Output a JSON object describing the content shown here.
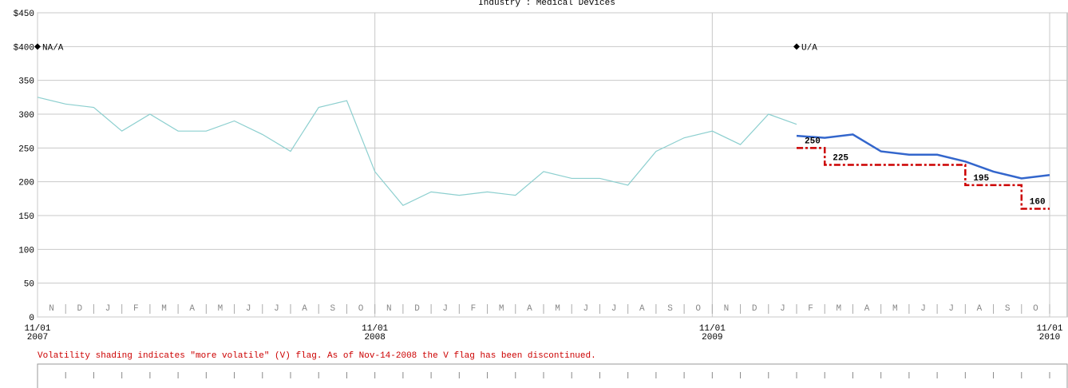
{
  "chart_data": {
    "type": "line",
    "title": "Industry : Medical Devices",
    "x": [
      "2007-11",
      "2007-12",
      "2008-01",
      "2008-02",
      "2008-03",
      "2008-04",
      "2008-05",
      "2008-06",
      "2008-07",
      "2008-08",
      "2008-09",
      "2008-10",
      "2008-11",
      "2008-12",
      "2009-01",
      "2009-02",
      "2009-03",
      "2009-04",
      "2009-05",
      "2009-06",
      "2009-07",
      "2009-08",
      "2009-09",
      "2009-10",
      "2009-11",
      "2009-12",
      "2010-01",
      "2010-02",
      "2010-03",
      "2010-04",
      "2010-05",
      "2010-06",
      "2010-07",
      "2010-08",
      "2010-09",
      "2010-10",
      "2010-11"
    ],
    "series": [
      {
        "color": "#8ccfcf",
        "values": [
          325,
          315,
          310,
          275,
          300,
          275,
          275,
          290,
          270,
          245,
          310,
          320,
          215,
          165,
          185,
          180,
          185,
          180,
          215,
          205,
          205,
          195,
          245,
          265,
          275,
          255,
          300,
          285,
          null,
          null,
          null,
          null,
          null,
          null,
          null,
          null,
          null
        ]
      },
      {
        "color": "#3366cc",
        "values": [
          null,
          null,
          null,
          null,
          null,
          null,
          null,
          null,
          null,
          null,
          null,
          null,
          null,
          null,
          null,
          null,
          null,
          null,
          null,
          null,
          null,
          null,
          null,
          null,
          null,
          null,
          null,
          268,
          265,
          270,
          245,
          240,
          240,
          230,
          215,
          205,
          210
        ]
      },
      {
        "color": "#cc0000",
        "step": true,
        "values": [
          null,
          null,
          null,
          null,
          null,
          null,
          null,
          null,
          null,
          null,
          null,
          null,
          null,
          null,
          null,
          null,
          null,
          null,
          null,
          null,
          null,
          null,
          null,
          null,
          null,
          null,
          null,
          250,
          225,
          225,
          225,
          225,
          225,
          195,
          195,
          160,
          160
        ]
      }
    ],
    "annotations": [
      {
        "text": "NA/A",
        "x": "2007-11",
        "y": 400
      },
      {
        "text": "U/A",
        "x": "2010-02",
        "y": 400
      }
    ],
    "xlim": [
      "2007-11",
      "2010-11"
    ],
    "xticks": [
      {
        "value": "2007-11",
        "label": "11/01",
        "year": "2007"
      },
      {
        "value": "2008-11",
        "label": "11/01",
        "year": "2008"
      },
      {
        "value": "2009-11",
        "label": "11/01",
        "year": "2009"
      },
      {
        "value": "2010-11",
        "label": "11/01",
        "year": "2010"
      }
    ],
    "month_labels": [
      "N",
      "D",
      "J",
      "F",
      "M",
      "A",
      "M",
      "J",
      "J",
      "A",
      "S",
      "O",
      "N",
      "D",
      "J",
      "F",
      "M",
      "A",
      "M",
      "J",
      "J",
      "A",
      "S",
      "O",
      "N",
      "D",
      "J",
      "F",
      "M",
      "A",
      "M",
      "J",
      "J",
      "A",
      "S",
      "O"
    ],
    "ylim": [
      0,
      450
    ],
    "yticks": [
      0,
      50,
      100,
      150,
      200,
      250,
      300,
      350,
      {
        "value": 400,
        "label": "$400"
      },
      {
        "value": 450,
        "label": "$450"
      }
    ],
    "grid": true,
    "footnote": "Volatility shading indicates \"more volatile\" (V) flag. As of Nov-14-2008 the V flag has been discontinued."
  }
}
